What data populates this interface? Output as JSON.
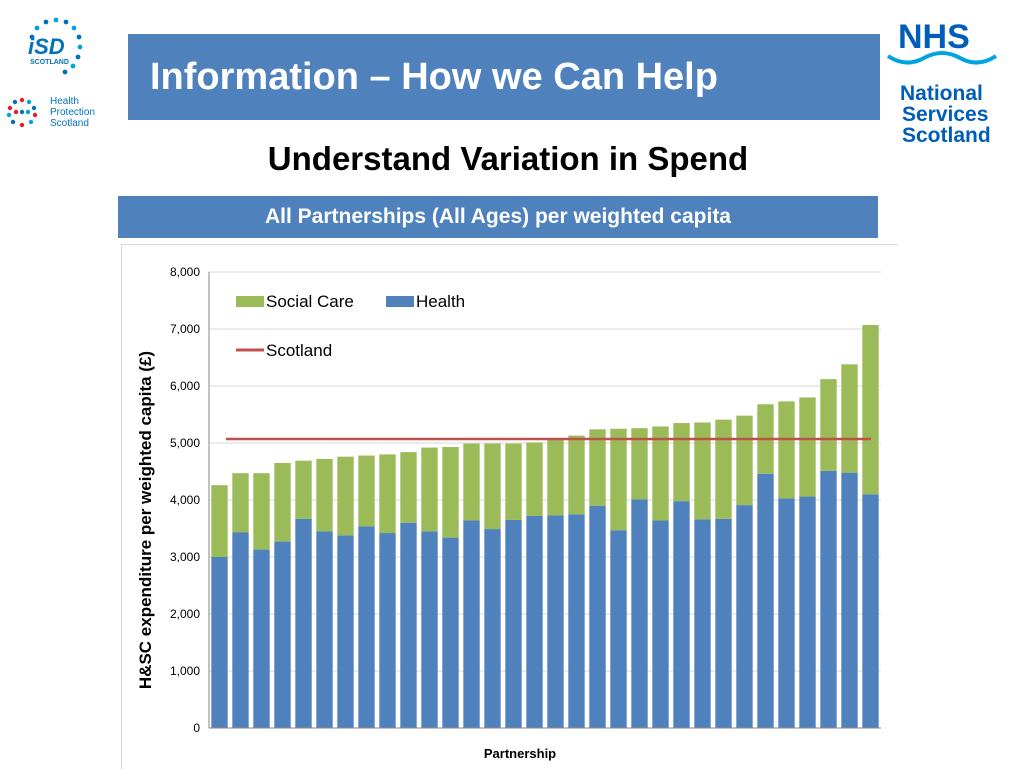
{
  "slide": {
    "title": "Information – How we Can Help",
    "subtitle": "Understand Variation in Spend"
  },
  "logos": {
    "isd": {
      "letters": "iSD",
      "place": "SCOTLAND"
    },
    "hps": {
      "line1": "Health",
      "line2": "Protection",
      "line3": "Scotland"
    },
    "nhs": {
      "mark": "NHS",
      "line1": "National",
      "line2": "Services",
      "line3": "Scotland"
    }
  },
  "colors": {
    "accent": "#4f81bd",
    "social_care": "#9bbb59",
    "health": "#4f81bd",
    "scotland_line": "#c0504d",
    "nhs_blue": "#005eb8"
  },
  "chart_data": {
    "type": "bar",
    "stacked": true,
    "header": "All Partnerships (All Ages) per weighted capita",
    "xlabel": "Partnership",
    "ylabel": "H&SC expenditure per weighted capita (£)",
    "ylim": [
      0,
      8000
    ],
    "yticks": [
      "0",
      "1,000",
      "2,000",
      "3,000",
      "4,000",
      "5,000",
      "6,000",
      "7,000",
      "8,000"
    ],
    "ytick_values": [
      0,
      1000,
      2000,
      3000,
      4000,
      5000,
      6000,
      7000,
      8000
    ],
    "grid": true,
    "legend": "top-left",
    "series": [
      {
        "name": "Health",
        "values": [
          3000,
          3430,
          3130,
          3270,
          3670,
          3450,
          3380,
          3540,
          3420,
          3600,
          3450,
          3340,
          3640,
          3490,
          3650,
          3720,
          3730,
          3750,
          3900,
          3470,
          4010,
          3640,
          3980,
          3660,
          3670,
          3910,
          4460,
          4030,
          4060,
          4510,
          4480,
          4100
        ]
      },
      {
        "name": "Social Care",
        "values": [
          1260,
          1040,
          1340,
          1380,
          1020,
          1270,
          1380,
          1240,
          1380,
          1240,
          1470,
          1590,
          1350,
          1500,
          1340,
          1290,
          1330,
          1380,
          1340,
          1780,
          1250,
          1650,
          1370,
          1700,
          1740,
          1570,
          1220,
          1700,
          1740,
          1610,
          1900,
          2970
        ]
      }
    ],
    "reference_line": {
      "name": "Scotland",
      "value": 5070
    }
  }
}
